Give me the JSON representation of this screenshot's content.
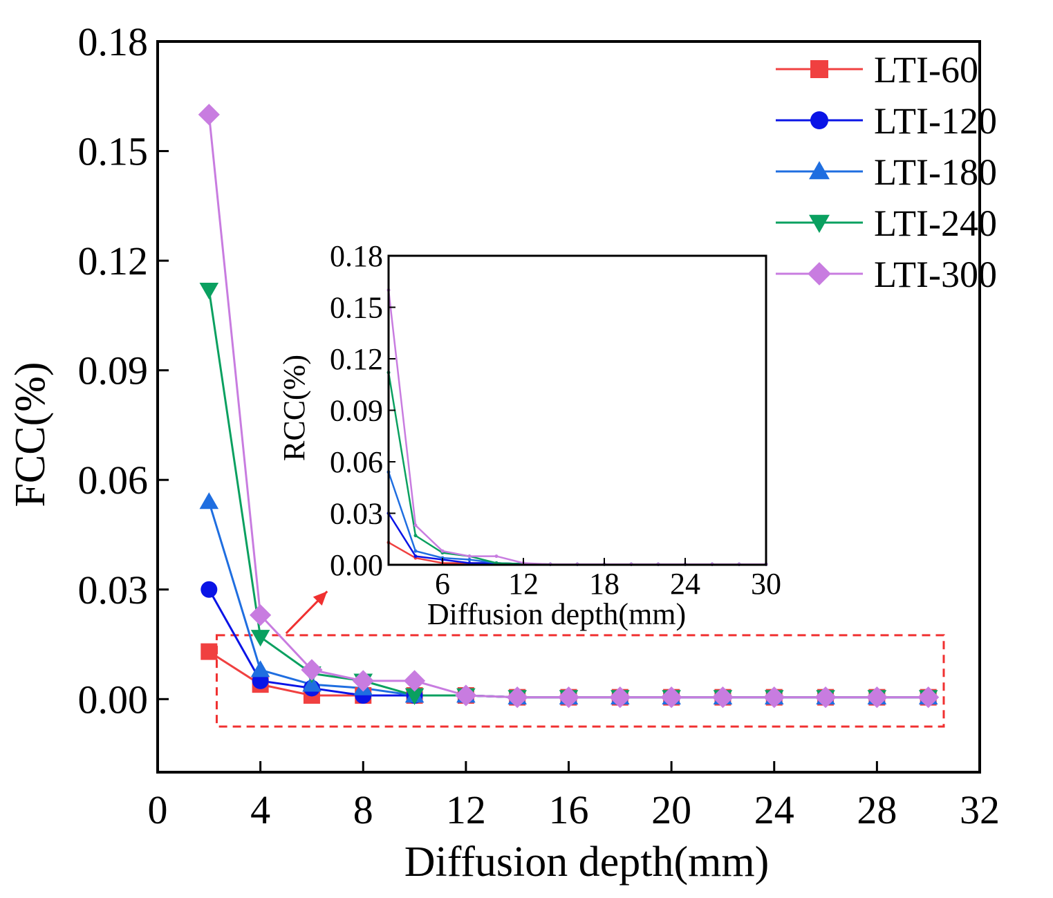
{
  "chart_data": [
    {
      "type": "line",
      "role": "main",
      "title": "",
      "xlabel": "Diffusion depth(mm)",
      "ylabel": "FCC(%)",
      "xlim": [
        0,
        32
      ],
      "ylim": [
        -0.02,
        0.18
      ],
      "x_ticks": [
        0,
        4,
        8,
        12,
        16,
        20,
        24,
        28,
        32
      ],
      "x_tick_labels": [
        "0",
        "4",
        "8",
        "12",
        "16",
        "20",
        "24",
        "28",
        "32"
      ],
      "y_ticks": [
        0,
        0.03,
        0.06,
        0.09,
        0.12,
        0.15,
        0.18
      ],
      "y_tick_labels": [
        "0.00",
        "0.03",
        "0.06",
        "0.09",
        "0.12",
        "0.15",
        "0.18"
      ],
      "grid": false,
      "legend_position": "top-right",
      "x": [
        2,
        4,
        6,
        8,
        10,
        12,
        14,
        16,
        18,
        20,
        22,
        24,
        26,
        28,
        30
      ],
      "series": [
        {
          "name": "LTI-60",
          "color": "#f04040",
          "marker": "square",
          "values": [
            0.013,
            0.004,
            0.001,
            0.001,
            0.001,
            0.001,
            0.0005,
            0.0005,
            0.0005,
            0.0005,
            0.0005,
            0.0005,
            0.0005,
            0.0005,
            0.0005
          ]
        },
        {
          "name": "LTI-120",
          "color": "#0a14e6",
          "marker": "circle",
          "values": [
            0.03,
            0.005,
            0.003,
            0.001,
            0.001,
            0.001,
            0.0005,
            0.0005,
            0.0005,
            0.0005,
            0.0005,
            0.0005,
            0.0005,
            0.0005,
            0.0005
          ]
        },
        {
          "name": "LTI-180",
          "color": "#1f6ee0",
          "marker": "triangle-up",
          "values": [
            0.054,
            0.008,
            0.004,
            0.003,
            0.001,
            0.001,
            0.0005,
            0.0005,
            0.0005,
            0.0005,
            0.0005,
            0.0005,
            0.0005,
            0.0005,
            0.0005
          ]
        },
        {
          "name": "LTI-240",
          "color": "#0aa060",
          "marker": "triangle-down",
          "values": [
            0.112,
            0.017,
            0.007,
            0.005,
            0.001,
            0.001,
            0.0005,
            0.0005,
            0.0005,
            0.0005,
            0.0005,
            0.0005,
            0.0005,
            0.0005,
            0.0005
          ]
        },
        {
          "name": "LTI-300",
          "color": "#c87ce0",
          "marker": "diamond",
          "values": [
            0.16,
            0.023,
            0.008,
            0.005,
            0.005,
            0.001,
            0.0005,
            0.0005,
            0.0005,
            0.0005,
            0.0005,
            0.0005,
            0.0005,
            0.0005,
            0.0005
          ]
        }
      ],
      "annotations": [
        {
          "type": "dashed-rectangle",
          "color": "#f03030",
          "x_range": [
            2.3,
            30.6
          ],
          "y_range": [
            -0.0075,
            0.0175
          ]
        },
        {
          "type": "arrow",
          "color": "#f03030",
          "from": [
            5,
            0.018
          ],
          "to": [
            6.6,
            0.0295
          ]
        }
      ]
    },
    {
      "type": "line",
      "role": "inset",
      "title": "",
      "xlabel": "Diffusion depth(mm)",
      "ylabel": "RCC(%)",
      "xlim": [
        2,
        30
      ],
      "ylim": [
        0,
        0.18
      ],
      "x_ticks": [
        6,
        12,
        18,
        24,
        30
      ],
      "x_tick_labels": [
        "6",
        "12",
        "18",
        "24",
        "30"
      ],
      "y_ticks": [
        0,
        0.03,
        0.06,
        0.09,
        0.12,
        0.15,
        0.18
      ],
      "y_tick_labels": [
        "0.00",
        "0.03",
        "0.06",
        "0.09",
        "0.12",
        "0.15",
        "0.18"
      ],
      "grid": false,
      "x": [
        2,
        4,
        6,
        8,
        10,
        12,
        14,
        16,
        18,
        20,
        22,
        24,
        26,
        28,
        30
      ],
      "series": [
        {
          "name": "LTI-60",
          "color": "#f04040",
          "values": [
            0.013,
            0.004,
            0.001,
            0.001,
            0.001,
            0.0005,
            0.0003,
            0.0003,
            0.0003,
            0.0003,
            0.0003,
            0.0003,
            0.0003,
            0.0003,
            0.0003
          ]
        },
        {
          "name": "LTI-120",
          "color": "#0a14e6",
          "values": [
            0.03,
            0.005,
            0.003,
            0.001,
            0.001,
            0.0005,
            0.0003,
            0.0003,
            0.0003,
            0.0003,
            0.0003,
            0.0003,
            0.0003,
            0.0003,
            0.0003
          ]
        },
        {
          "name": "LTI-180",
          "color": "#1f6ee0",
          "values": [
            0.054,
            0.008,
            0.004,
            0.003,
            0.001,
            0.0005,
            0.0003,
            0.0003,
            0.0003,
            0.0003,
            0.0003,
            0.0003,
            0.0003,
            0.0003,
            0.0003
          ]
        },
        {
          "name": "LTI-240",
          "color": "#0aa060",
          "values": [
            0.112,
            0.017,
            0.007,
            0.005,
            0.001,
            0.0005,
            0.0003,
            0.0003,
            0.0003,
            0.0003,
            0.0003,
            0.0003,
            0.0003,
            0.0003,
            0.0003
          ]
        },
        {
          "name": "LTI-300",
          "color": "#c87ce0",
          "values": [
            0.16,
            0.023,
            0.008,
            0.005,
            0.005,
            0.001,
            0.0003,
            0.0003,
            0.0003,
            0.0003,
            0.0003,
            0.0003,
            0.0003,
            0.0003,
            0.0003
          ]
        }
      ]
    }
  ]
}
